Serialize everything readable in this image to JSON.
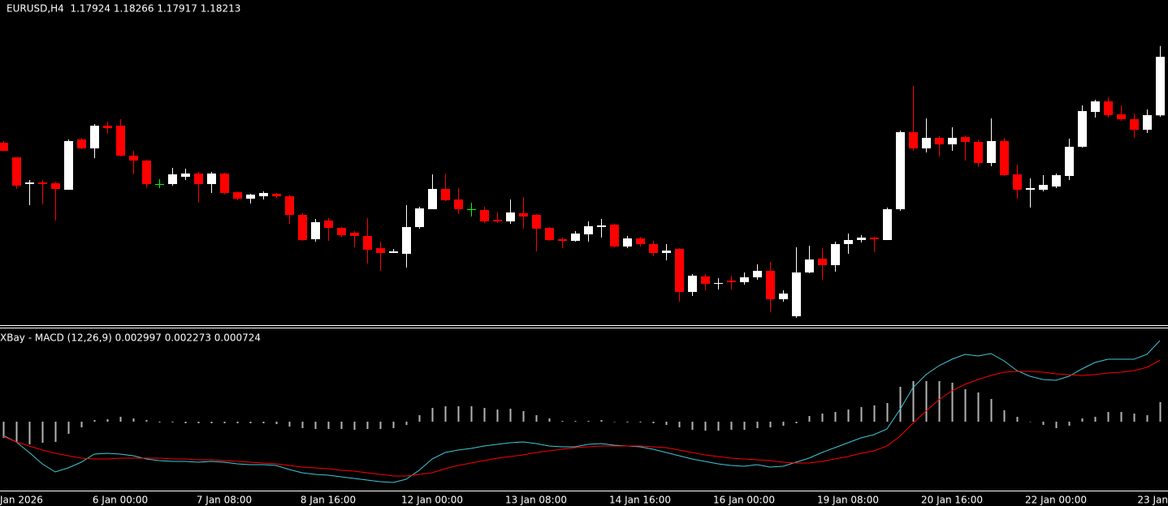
{
  "chart_data": [
    {
      "type": "candlestick",
      "title": "EURUSD,H4  1.17924 1.18266 1.17917 1.18213",
      "categories": [
        null,
        "Jan 2026",
        null,
        null,
        null,
        null,
        null,
        null,
        null,
        "6 Jan 00:00",
        null,
        null,
        null,
        null,
        null,
        null,
        null,
        "7 Jan 08:00",
        null,
        null,
        null,
        null,
        null,
        null,
        null,
        "8 Jan 16:00",
        null,
        null,
        null,
        null,
        null,
        null,
        null,
        "12 Jan 00:00",
        null,
        null,
        null,
        null,
        null,
        null,
        null,
        "13 Jan 08:00",
        null,
        null,
        null,
        null,
        null,
        null,
        null,
        "14 Jan 16:00",
        null,
        null,
        null,
        null,
        null,
        null,
        null,
        "16 Jan 00:00",
        null,
        null,
        null,
        null,
        null,
        null,
        null,
        "19 Jan 08:00",
        null,
        null,
        null,
        null,
        null,
        null,
        null,
        "20 Jan 16:00",
        null,
        null,
        null,
        null,
        null,
        null,
        null,
        "22 Jan 00:00",
        null,
        null,
        null,
        null,
        null,
        null,
        null,
        "23 Jan"
      ],
      "open": [
        1.17789,
        1.17717,
        1.17585,
        1.17593,
        1.17589,
        1.17557,
        1.17805,
        1.17761,
        1.17873,
        1.17873,
        1.17725,
        1.17701,
        1.17585,
        1.17585,
        1.17621,
        1.17637,
        1.17585,
        1.17637,
        1.17545,
        1.17513,
        1.17525,
        1.17537,
        1.17525,
        1.17433,
        1.17313,
        1.17405,
        1.17369,
        1.17345,
        1.17329,
        1.17269,
        1.17245,
        1.17241,
        1.17373,
        1.17461,
        1.17561,
        1.17509,
        1.17461,
        1.17457,
        1.17409,
        1.17401,
        1.17441,
        1.17433,
        1.17369,
        1.17313,
        1.17305,
        1.17337,
        1.17373,
        1.17385,
        1.17277,
        1.17317,
        1.17289,
        1.17245,
        1.17265,
        1.17053,
        1.17129,
        1.17093,
        1.17109,
        1.17101,
        1.17125,
        1.17157,
        1.17017,
        1.16933,
        1.17149,
        1.17217,
        1.17185,
        1.17289,
        1.17309,
        1.17321,
        1.17309,
        1.17461,
        1.17841,
        1.17761,
        1.17813,
        1.17781,
        1.17817,
        1.17793,
        1.17689,
        1.17797,
        1.17633,
        1.17557,
        1.17557,
        1.17573,
        1.17625,
        1.17769,
        1.17941,
        1.17993,
        1.17929,
        1.17905,
        1.17853,
        1.17924
      ],
      "high": [
        1.17797,
        1.17717,
        1.17605,
        1.17605,
        1.17597,
        1.17805,
        1.17813,
        1.17881,
        1.17893,
        1.17905,
        1.17749,
        1.17705,
        1.17609,
        1.17665,
        1.17661,
        1.17645,
        1.17645,
        1.17641,
        1.17549,
        1.17537,
        1.17549,
        1.17541,
        1.17533,
        1.17441,
        1.17413,
        1.17417,
        1.17373,
        1.17353,
        1.17417,
        1.17301,
        1.17265,
        1.17481,
        1.17473,
        1.17633,
        1.17637,
        1.17565,
        1.17493,
        1.17473,
        1.17445,
        1.17509,
        1.17521,
        1.17437,
        1.17373,
        1.17321,
        1.17353,
        1.17401,
        1.17413,
        1.17389,
        1.17329,
        1.17325,
        1.17305,
        1.17289,
        1.17269,
        1.17141,
        1.17141,
        1.17121,
        1.17133,
        1.17149,
        1.17189,
        1.17201,
        1.17061,
        1.17273,
        1.17281,
        1.17269,
        1.17301,
        1.17341,
        1.17333,
        1.17325,
        1.17469,
        1.17849,
        1.18069,
        1.17909,
        1.17821,
        1.17865,
        1.17825,
        1.17805,
        1.17909,
        1.17813,
        1.17681,
        1.17613,
        1.17629,
        1.17637,
        1.17809,
        1.17973,
        1.18001,
        1.18013,
        1.17973,
        1.17933,
        1.17953,
        1.18266
      ],
      "low": [
        1.17749,
        1.17561,
        1.17481,
        1.17485,
        1.17405,
        1.17557,
        1.17757,
        1.17713,
        1.17833,
        1.17721,
        1.17633,
        1.17565,
        1.17565,
        1.17577,
        1.17605,
        1.17493,
        1.17541,
        1.17533,
        1.17505,
        1.17489,
        1.17509,
        1.17517,
        1.17389,
        1.17305,
        1.17301,
        1.17305,
        1.17325,
        1.17273,
        1.17193,
        1.17157,
        1.17245,
        1.17173,
        1.17365,
        1.17461,
        1.17501,
        1.17437,
        1.17425,
        1.17393,
        1.17393,
        1.17389,
        1.17365,
        1.17253,
        1.17305,
        1.17269,
        1.17301,
        1.17301,
        1.17321,
        1.17273,
        1.17269,
        1.17277,
        1.17229,
        1.17209,
        1.17005,
        1.17033,
        1.17061,
        1.17065,
        1.17065,
        1.17089,
        1.17113,
        1.16953,
        1.17005,
        1.16925,
        1.17145,
        1.17113,
        1.17153,
        1.17241,
        1.17297,
        1.17249,
        1.17309,
        1.17453,
        1.17749,
        1.17741,
        1.17721,
        1.17749,
        1.17701,
        1.17669,
        1.17673,
        1.17625,
        1.17513,
        1.17469,
        1.17549,
        1.17565,
        1.17605,
        1.17765,
        1.17913,
        1.17913,
        1.17897,
        1.17813,
        1.17837,
        1.17917
      ],
      "close": [
        1.17749,
        1.17577,
        1.17593,
        1.17585,
        1.17561,
        1.17797,
        1.17761,
        1.17873,
        1.17861,
        1.17725,
        1.17701,
        1.17585,
        1.17585,
        1.17633,
        1.17637,
        1.17585,
        1.17637,
        1.17541,
        1.17513,
        1.17533,
        1.17541,
        1.17525,
        1.17433,
        1.17309,
        1.17397,
        1.17369,
        1.17333,
        1.17329,
        1.17261,
        1.17245,
        1.17253,
        1.17373,
        1.17465,
        1.17561,
        1.17505,
        1.17461,
        1.17461,
        1.17401,
        1.17401,
        1.17445,
        1.17425,
        1.17365,
        1.17309,
        1.17305,
        1.17341,
        1.17377,
        1.17381,
        1.17277,
        1.17317,
        1.17289,
        1.17245,
        1.17257,
        1.17053,
        1.17133,
        1.17093,
        1.17097,
        1.17101,
        1.17125,
        1.17157,
        1.17017,
        1.17045,
        1.17149,
        1.17213,
        1.17185,
        1.17289,
        1.17309,
        1.17321,
        1.17313,
        1.17461,
        1.17841,
        1.17761,
        1.17813,
        1.17781,
        1.17813,
        1.17793,
        1.17689,
        1.17797,
        1.17629,
        1.17557,
        1.17565,
        1.17581,
        1.17629,
        1.17769,
        1.17945,
        1.17993,
        1.17925,
        1.17905,
        1.17853,
        1.17925,
        1.18213
      ],
      "ylim": [
        1.16893,
        1.18493
      ],
      "up_color": "#ffffff",
      "down_color": "#ff0000",
      "doji_color": "#00ff00"
    },
    {
      "type": "macd",
      "title": "XBay - MACD (12,26,9) 0.002997 0.002273 0.000724",
      "series": [
        {
          "color": "#3fc8d8",
          "values": [
            -0.00051,
            -0.00075,
            -0.00114,
            -0.00156,
            -0.00186,
            -0.00171,
            -0.0015,
            -0.0012,
            -0.00117,
            -0.0012,
            -0.00126,
            -0.00138,
            -0.00144,
            -0.00147,
            -0.00147,
            -0.0015,
            -0.00147,
            -0.0015,
            -0.00156,
            -0.00159,
            -0.00159,
            -0.00162,
            -0.00177,
            -0.00189,
            -0.00195,
            -0.00198,
            -0.00204,
            -0.0021,
            -0.00216,
            -0.00222,
            -0.00225,
            -0.00213,
            -0.0018,
            -0.00138,
            -0.00114,
            -0.00105,
            -0.00099,
            -0.0009,
            -0.00084,
            -0.00078,
            -0.00075,
            -0.00081,
            -0.0009,
            -0.00093,
            -0.00093,
            -0.00084,
            -0.00081,
            -0.00087,
            -0.0009,
            -0.00093,
            -0.00102,
            -0.00114,
            -0.00126,
            -0.00138,
            -0.00147,
            -0.00156,
            -0.00162,
            -0.00165,
            -0.00159,
            -0.00168,
            -0.00165,
            -0.0015,
            -0.00135,
            -0.00114,
            -0.00096,
            -0.00078,
            -0.0006,
            -0.00048,
            -0.00027,
            0.00045,
            0.00126,
            0.00174,
            0.00207,
            0.00231,
            0.00249,
            0.00243,
            0.00252,
            0.00225,
            0.00189,
            0.00168,
            0.00156,
            0.00153,
            0.00168,
            0.00195,
            0.00219,
            0.00231,
            0.00231,
            0.00231,
            0.00249,
            0.002997
          ]
        },
        {
          "color": "#ff0000",
          "values": [
            -0.00054,
            -0.00075,
            -0.0009,
            -0.00105,
            -0.00117,
            -0.00126,
            -0.00135,
            -0.00138,
            -0.00138,
            -0.00135,
            -0.00135,
            -0.00135,
            -0.00135,
            -0.00138,
            -0.00138,
            -0.00141,
            -0.00141,
            -0.00144,
            -0.00147,
            -0.0015,
            -0.00153,
            -0.00156,
            -0.00162,
            -0.00168,
            -0.00171,
            -0.00174,
            -0.0018,
            -0.00183,
            -0.00189,
            -0.00195,
            -0.00201,
            -0.00201,
            -0.00195,
            -0.00189,
            -0.00174,
            -0.00162,
            -0.00153,
            -0.00144,
            -0.00135,
            -0.00129,
            -0.00123,
            -0.00114,
            -0.00108,
            -0.00102,
            -0.00096,
            -0.00093,
            -0.0009,
            -0.0009,
            -0.0009,
            -0.0009,
            -0.00093,
            -0.00096,
            -0.00105,
            -0.00114,
            -0.00123,
            -0.00129,
            -0.00135,
            -0.00138,
            -0.00141,
            -0.00144,
            -0.0015,
            -0.00153,
            -0.00153,
            -0.00147,
            -0.00138,
            -0.00129,
            -0.00117,
            -0.00108,
            -0.0009,
            -0.00054,
            -6e-05,
            0.00039,
            0.00081,
            0.00114,
            0.00138,
            0.00156,
            0.00171,
            0.00183,
            0.00186,
            0.00186,
            0.00183,
            0.00177,
            0.00174,
            0.00171,
            0.00174,
            0.0018,
            0.00183,
            0.00189,
            0.00201,
            0.002273
          ]
        }
      ],
      "histogram": {
        "color": "#b4b4b4",
        "values": [
          -0.0006,
          -0.00075,
          -0.00084,
          -0.00078,
          -0.00075,
          -0.00045,
          -0.00021,
          6e-05,
          9e-05,
          0.00018,
          0.00012,
          6e-05,
          -3e-05,
          -3e-05,
          -6e-05,
          -6e-05,
          -6e-05,
          -6e-05,
          -6e-05,
          -6e-05,
          -6e-05,
          -9e-05,
          -0.00018,
          -0.00024,
          -0.00027,
          -0.00027,
          -0.00027,
          -0.0003,
          -0.00027,
          -0.00027,
          -0.00024,
          -0.00012,
          0.00024,
          0.00051,
          0.00057,
          0.00057,
          0.00057,
          0.00051,
          0.00045,
          0.00048,
          0.00039,
          0.00024,
          0.00012,
          3e-05,
          3e-05,
          3e-05,
          6e-05,
          0,
          -3e-05,
          -3e-05,
          -6e-05,
          -0.00012,
          -0.00021,
          -0.0003,
          -0.00033,
          -0.00033,
          -0.0003,
          -0.0003,
          -0.00024,
          -0.00021,
          -0.00015,
          -6e-05,
          0.00021,
          0.0003,
          0.00036,
          0.00045,
          0.00054,
          0.0006,
          0.00069,
          0.00129,
          0.0015,
          0.0015,
          0.0015,
          0.00144,
          0.0012,
          0.00108,
          0.00084,
          0.00042,
          0.00018,
          0,
          -0.00012,
          -0.00024,
          -0.00015,
          0.00012,
          0.00018,
          0.00036,
          0.00036,
          0.0003,
          0.00024,
          0.000724
        ]
      },
      "ylim": [
        -0.00255,
        0.00345
      ]
    }
  ]
}
